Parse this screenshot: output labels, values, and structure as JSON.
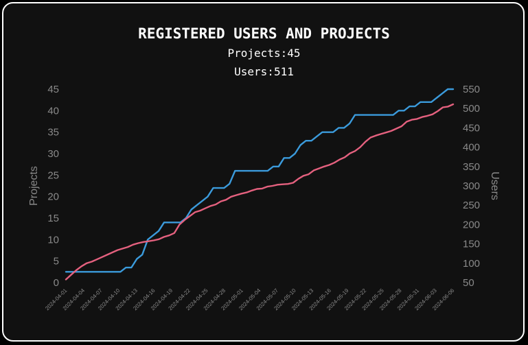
{
  "chart_data": {
    "type": "line",
    "title": "REGISTERED USERS AND PROJECTS",
    "subtitles": [
      "Projects:45",
      "Users:511"
    ],
    "ylabel_left": "Projects",
    "ylabel_right": "Users",
    "y_left_ticks": [
      "0",
      "5",
      "10",
      "15",
      "20",
      "25",
      "30",
      "35",
      "40",
      "45"
    ],
    "y_right_ticks": [
      "50",
      "100",
      "150",
      "200",
      "250",
      "300",
      "350",
      "400",
      "450",
      "500",
      "550"
    ],
    "ylim_left": [
      0,
      45
    ],
    "ylim_right": [
      50,
      550
    ],
    "x_tick_labels": [
      "2024-04-01",
      "2024-04-04",
      "2024-04-07",
      "2024-04-10",
      "2024-04-13",
      "2024-04-16",
      "2024-04-19",
      "2024-04-22",
      "2024-04-25",
      "2024-04-28",
      "2024-05-01",
      "2024-05-04",
      "2024-05-07",
      "2024-05-10",
      "2024-05-13",
      "2024-05-16",
      "2024-05-19",
      "2024-05-22",
      "2024-05-25",
      "2024-05-28",
      "2024-05-31",
      "2024-06-03",
      "2024-06-06"
    ],
    "grid": false,
    "colors": {
      "projects": "#3b9bdc",
      "users": "#e5617f"
    },
    "series": [
      {
        "axis": "left",
        "values": [
          2.5,
          2.5,
          2.5,
          2.5,
          2.5,
          2.5,
          2.5,
          2.5,
          2.5,
          2.5,
          2.5,
          3.5,
          3.5,
          5.5,
          6.5,
          10,
          11,
          12,
          14,
          14,
          14,
          14,
          15,
          17,
          18,
          19,
          20,
          22,
          22,
          22,
          23,
          26,
          26,
          26,
          26,
          26,
          26,
          26,
          27,
          27,
          29,
          29,
          30,
          32,
          33,
          33,
          34,
          35,
          35,
          35,
          36,
          36,
          37,
          39,
          39,
          39,
          39,
          39,
          39,
          39,
          39,
          40,
          40,
          41,
          41,
          42,
          42,
          42,
          43,
          44,
          45,
          45
        ]
      },
      {
        "axis": "right",
        "values": [
          58,
          70,
          82,
          92,
          100,
          104,
          110,
          116,
          122,
          128,
          134,
          138,
          142,
          148,
          152,
          155,
          157,
          159,
          162,
          168,
          172,
          178,
          200,
          212,
          222,
          232,
          236,
          242,
          248,
          252,
          260,
          264,
          272,
          276,
          280,
          283,
          288,
          292,
          293,
          298,
          300,
          303,
          304,
          305,
          308,
          318,
          326,
          330,
          340,
          345,
          350,
          354,
          360,
          368,
          374,
          384,
          390,
          400,
          414,
          425,
          430,
          434,
          438,
          442,
          448,
          454,
          466,
          471,
          473,
          478,
          481,
          485,
          493,
          503,
          505,
          511
        ]
      }
    ]
  }
}
